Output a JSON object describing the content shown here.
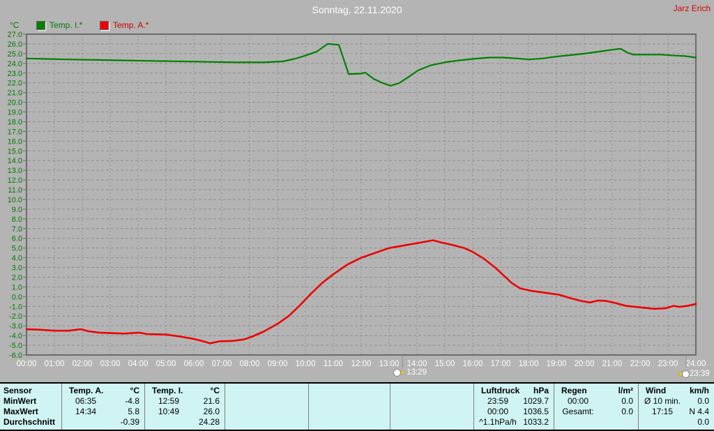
{
  "header": {
    "title": "Sonntag, 22.11.2020",
    "author": "Jarz Erich"
  },
  "legend": {
    "unit": "°C",
    "items": [
      {
        "label": "Temp. I.*",
        "color": "#008000",
        "text_color": "#007a00"
      },
      {
        "label": "Temp. A.*",
        "color": "#ee0000",
        "text_color": "#cc0000"
      }
    ]
  },
  "colors": {
    "background": "#b4b4b4",
    "grid": "#8f8f8f",
    "frame": "#6b6b6b",
    "table_bg": "#d0f4f4",
    "title": "#ffffff",
    "author": "#dd0000",
    "axis_label_y": "#007a00",
    "axis_label_x": "#ffffff",
    "temp_i": "#008000",
    "temp_a": "#ee0000"
  },
  "chart_data": {
    "type": "line",
    "title": "Sonntag, 22.11.2020",
    "ylabel": "°C",
    "ylim": [
      -6,
      27
    ],
    "ytick_step": 1,
    "ytick_labels": [
      "27.0",
      "26.0",
      "25.0",
      "24.0",
      "23.0",
      "22.0",
      "21.0",
      "20.0",
      "19.0",
      "18.0",
      "17.0",
      "16.0",
      "15.0",
      "14.0",
      "13.0",
      "12.0",
      "11.0",
      "10.0",
      "9.0",
      "8.0",
      "7.0",
      "6.0",
      "5.0",
      "4.0",
      "3.0",
      "2.0",
      "1.0",
      "0.0",
      "-1.0",
      "-2.0",
      "-3.0",
      "-4.0",
      "-5.0",
      "-6.0"
    ],
    "xlim": [
      0,
      24
    ],
    "xtick_labels": [
      "00:00",
      "01:00",
      "02:00",
      "03:00",
      "04:00",
      "05:00",
      "06:00",
      "07:00",
      "08:00",
      "09:00",
      "10:00",
      "11:00",
      "12:00",
      "13:00",
      "14:00",
      "15:00",
      "16:00",
      "17:00",
      "18:00",
      "19:00",
      "20:00",
      "21:00",
      "22:00",
      "23:00",
      "24:00"
    ],
    "grid": true,
    "legend_position": "top-left",
    "series": [
      {
        "name": "Temp. I.*",
        "color": "#008000",
        "points": [
          [
            0,
            24.5
          ],
          [
            0.7,
            24.45
          ],
          [
            1.5,
            24.4
          ],
          [
            2.5,
            24.35
          ],
          [
            3.5,
            24.3
          ],
          [
            4.5,
            24.25
          ],
          [
            5.5,
            24.2
          ],
          [
            6.5,
            24.15
          ],
          [
            7.5,
            24.1
          ],
          [
            8.5,
            24.1
          ],
          [
            9.2,
            24.2
          ],
          [
            9.6,
            24.45
          ],
          [
            10,
            24.8
          ],
          [
            10.4,
            25.2
          ],
          [
            10.8,
            26.0
          ],
          [
            11.2,
            25.9
          ],
          [
            11.55,
            22.9
          ],
          [
            12,
            22.95
          ],
          [
            12.15,
            23.05
          ],
          [
            12.45,
            22.4
          ],
          [
            12.75,
            22.0
          ],
          [
            13.05,
            21.7
          ],
          [
            13.35,
            21.95
          ],
          [
            13.7,
            22.6
          ],
          [
            14.05,
            23.3
          ],
          [
            14.5,
            23.8
          ],
          [
            15,
            24.1
          ],
          [
            15.5,
            24.3
          ],
          [
            16,
            24.45
          ],
          [
            16.6,
            24.6
          ],
          [
            17.1,
            24.6
          ],
          [
            17.6,
            24.5
          ],
          [
            18,
            24.4
          ],
          [
            18.5,
            24.5
          ],
          [
            19,
            24.7
          ],
          [
            19.5,
            24.85
          ],
          [
            20,
            25.0
          ],
          [
            20.5,
            25.2
          ],
          [
            21,
            25.4
          ],
          [
            21.3,
            25.5
          ],
          [
            21.55,
            25.1
          ],
          [
            21.75,
            24.9
          ],
          [
            22.25,
            24.9
          ],
          [
            22.75,
            24.9
          ],
          [
            23.25,
            24.8
          ],
          [
            23.6,
            24.75
          ],
          [
            24,
            24.6
          ]
        ]
      },
      {
        "name": "Temp. A.*",
        "color": "#ee0000",
        "points": [
          [
            0,
            -3.35
          ],
          [
            0.5,
            -3.4
          ],
          [
            1,
            -3.5
          ],
          [
            1.5,
            -3.5
          ],
          [
            1.95,
            -3.35
          ],
          [
            2.2,
            -3.55
          ],
          [
            2.6,
            -3.7
          ],
          [
            3,
            -3.75
          ],
          [
            3.5,
            -3.8
          ],
          [
            4.05,
            -3.7
          ],
          [
            4.3,
            -3.85
          ],
          [
            5,
            -3.9
          ],
          [
            5.5,
            -4.1
          ],
          [
            6,
            -4.35
          ],
          [
            6.35,
            -4.6
          ],
          [
            6.58,
            -4.8
          ],
          [
            6.9,
            -4.6
          ],
          [
            7.4,
            -4.55
          ],
          [
            7.8,
            -4.4
          ],
          [
            8.1,
            -4.1
          ],
          [
            8.5,
            -3.6
          ],
          [
            9,
            -2.8
          ],
          [
            9.4,
            -2.0
          ],
          [
            9.8,
            -0.9
          ],
          [
            10.2,
            0.3
          ],
          [
            10.6,
            1.4
          ],
          [
            11,
            2.3
          ],
          [
            11.5,
            3.3
          ],
          [
            12,
            4.0
          ],
          [
            12.5,
            4.5
          ],
          [
            13,
            5.0
          ],
          [
            13.5,
            5.25
          ],
          [
            14,
            5.5
          ],
          [
            14.4,
            5.7
          ],
          [
            14.57,
            5.8
          ],
          [
            14.9,
            5.55
          ],
          [
            15.3,
            5.3
          ],
          [
            15.7,
            5.0
          ],
          [
            16,
            4.6
          ],
          [
            16.4,
            3.9
          ],
          [
            16.8,
            3.0
          ],
          [
            17.1,
            2.2
          ],
          [
            17.4,
            1.4
          ],
          [
            17.7,
            0.85
          ],
          [
            18.1,
            0.6
          ],
          [
            18.6,
            0.4
          ],
          [
            19.1,
            0.2
          ],
          [
            19.5,
            -0.15
          ],
          [
            19.9,
            -0.45
          ],
          [
            20.2,
            -0.6
          ],
          [
            20.5,
            -0.4
          ],
          [
            20.8,
            -0.45
          ],
          [
            21.1,
            -0.65
          ],
          [
            21.5,
            -0.95
          ],
          [
            22,
            -1.1
          ],
          [
            22.5,
            -1.25
          ],
          [
            22.9,
            -1.2
          ],
          [
            23.2,
            -0.95
          ],
          [
            23.4,
            -1.05
          ],
          [
            23.7,
            -0.95
          ],
          [
            24,
            -0.75
          ]
        ]
      }
    ],
    "markers": [
      {
        "label": "13:29",
        "hour": 13.483,
        "name": "moonrise-marker",
        "direction": "up"
      },
      {
        "label": "23:39",
        "hour": 23.65,
        "name": "moonset-marker",
        "direction": "down"
      }
    ]
  },
  "summary_table": {
    "row_labels": [
      "Sensor",
      "MinWert",
      "MaxWert",
      "Durchschnitt"
    ],
    "groups": [
      {
        "name": "Temp. A.",
        "unit": "°C",
        "rows": [
          [
            "06:35",
            "-4.8"
          ],
          [
            "14:34",
            "5.8"
          ],
          [
            "",
            "-0.39"
          ]
        ]
      },
      {
        "name": "Temp. I.",
        "unit": "°C",
        "rows": [
          [
            "12:59",
            "21.6"
          ],
          [
            "10:49",
            "26.0"
          ],
          [
            "",
            "24.28"
          ]
        ]
      },
      {
        "name": "",
        "unit": "",
        "rows": [
          [
            "",
            ""
          ],
          [
            "",
            ""
          ],
          [
            "",
            ""
          ]
        ]
      },
      {
        "name": "",
        "unit": "",
        "rows": [
          [
            "",
            ""
          ],
          [
            "",
            ""
          ],
          [
            "",
            ""
          ]
        ]
      },
      {
        "name": "",
        "unit": "",
        "rows": [
          [
            "",
            ""
          ],
          [
            "",
            ""
          ],
          [
            "",
            ""
          ]
        ]
      },
      {
        "name": "Luftdruck",
        "unit": "hPa",
        "rows": [
          [
            "23:59",
            "1029.7"
          ],
          [
            "00:00",
            "1036.5"
          ],
          [
            "^1.1hPa/h",
            "1033.2"
          ]
        ]
      },
      {
        "name": "Regen",
        "unit": "l/m²",
        "rows": [
          [
            "",
            ""
          ],
          [
            "00:00",
            "0.0"
          ],
          [
            "Gesamt:",
            "0.0"
          ]
        ]
      },
      {
        "name": "Wind",
        "unit": "km/h",
        "rows": [
          [
            "Ø 10 min.",
            "0.0"
          ],
          [
            "17:15",
            "N 4.4"
          ],
          [
            "",
            "0.0"
          ]
        ]
      }
    ]
  }
}
